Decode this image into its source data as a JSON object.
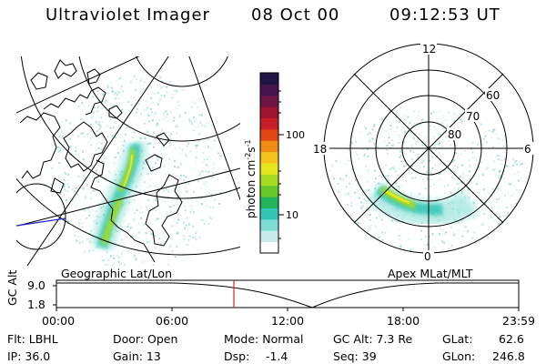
{
  "header": {
    "title": "Ultraviolet Imager",
    "date": "08 Oct 00",
    "time": "09:12:53 UT"
  },
  "geo_panel": {
    "label": "Geographic Lat/Lon"
  },
  "polar_panel": {
    "label": "Apex MLat/MLT",
    "mlt_labels": {
      "top": "12",
      "left": "18",
      "right": "6",
      "bottom": "0"
    },
    "lat_labels": [
      "60",
      "70",
      "80"
    ]
  },
  "colorbar": {
    "unit_label": "photon cm",
    "unit_exp1": "-2",
    "unit_s": "s",
    "unit_exp2": "-1",
    "ticks": [
      "100",
      "10"
    ],
    "colors": [
      "#ffffff",
      "#c8ecec",
      "#7fdcd2",
      "#33c6b4",
      "#22b45a",
      "#66c82a",
      "#a8dc1e",
      "#e6e61e",
      "#f5c21e",
      "#f08c14",
      "#e04614",
      "#c81e28",
      "#a01432",
      "#6e1446",
      "#46144e",
      "#1e1446"
    ]
  },
  "timeline": {
    "axis_label": "GC Alt",
    "y_top": "9.0",
    "y_bottom": "1.8",
    "x_ticks": [
      "00:00",
      "06:00",
      "12:00",
      "18:00",
      "23:59"
    ],
    "current_marker_fraction": 0.3839
  },
  "info": {
    "filter": "Flt: LBHL",
    "ip": "IP: 36.0",
    "door": "Door: Open",
    "gain": "Gain: 13",
    "mode": "Mode: Normal",
    "dsp_label": "Dsp:",
    "dsp_value": "-1.4",
    "gc_alt": "GC Alt: 7.3 Re",
    "seq": "Seq: 39",
    "glat_label": "GLat:",
    "glat_value": "62.6",
    "glon_label": "GLon:",
    "glon_value": "246.8"
  }
}
